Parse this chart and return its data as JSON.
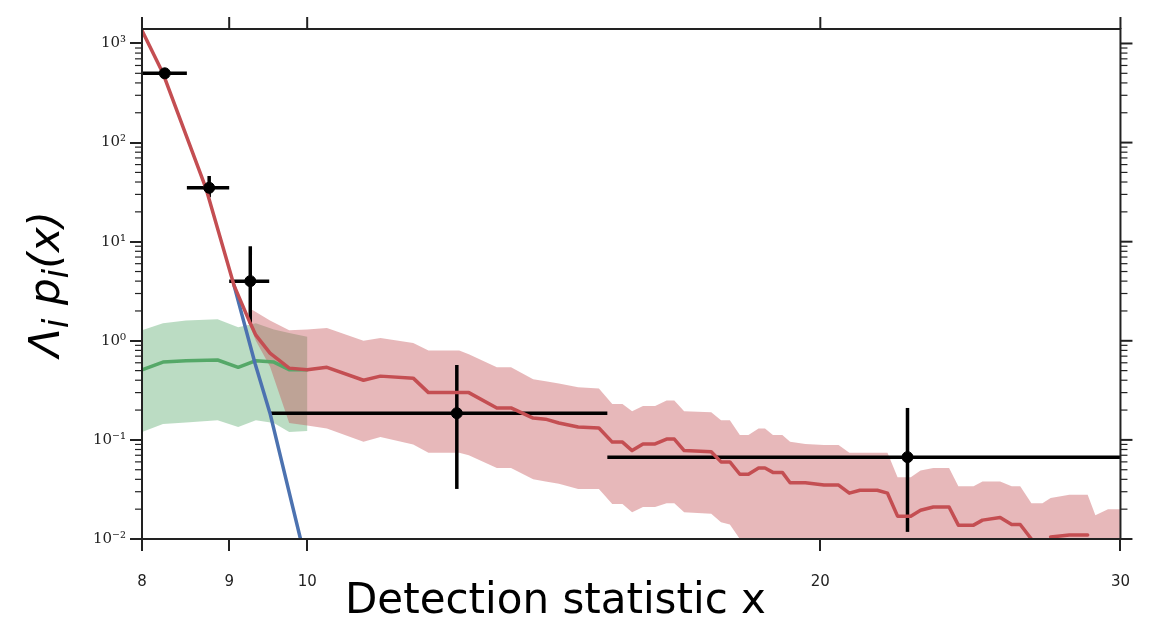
{
  "chart_data": {
    "type": "line",
    "xlabel": "Detection statistic x",
    "ylabel": "Λ$_{i}$ p$_{i}$(x)",
    "log": "xy",
    "grid": false,
    "legend": false,
    "xlim": [
      8,
      30
    ],
    "xticks": [
      8,
      9,
      10,
      20,
      30
    ],
    "ylim": [
      0.01,
      1400
    ],
    "yticks": [
      {
        "value": 0.01,
        "label": "10⁻²"
      },
      {
        "value": 0.1,
        "label": "10⁻¹"
      },
      {
        "value": 1,
        "label": "10⁰"
      },
      {
        "value": 10,
        "label": "10¹"
      },
      {
        "value": 100,
        "label": "10²"
      },
      {
        "value": 1000,
        "label": "10³"
      }
    ],
    "series": [
      {
        "color": "#55a868",
        "x": [
          8,
          8.23,
          8.49,
          8.86,
          9.11,
          9.33,
          9.56,
          9.76,
          10.0
        ],
        "values": [
          0.51,
          0.61,
          0.63,
          0.64,
          0.54,
          0.63,
          0.61,
          0.51,
          0.51
        ],
        "lower": [
          0.12,
          0.145,
          0.15,
          0.158,
          0.135,
          0.158,
          0.148,
          0.12,
          0.123
        ],
        "upper": [
          1.28,
          1.5,
          1.6,
          1.65,
          1.37,
          1.5,
          1.3,
          1.2,
          1.1
        ]
      },
      {
        "color": "#4c72b0",
        "x": [
          9.06,
          9.32,
          9.51,
          9.91
        ],
        "values": [
          3.6,
          0.59,
          0.186,
          0.01
        ]
      },
      {
        "color": "#c44e52",
        "x": [
          8,
          8.23,
          8.72,
          9.06,
          9.26,
          9.33,
          9.51,
          9.76,
          10.0,
          10.27,
          10.79,
          11.04,
          11.54,
          11.78,
          12.28,
          12.44,
          12.92,
          13.17,
          13.57,
          13.8,
          14.05,
          14.42,
          14.83,
          15.1,
          15.31,
          15.51,
          15.74,
          16.0,
          16.25,
          16.42,
          16.64,
          17.26,
          17.49,
          17.7,
          17.94,
          18.15,
          18.4,
          18.56,
          18.76,
          19.0,
          19.2,
          19.6,
          20.1,
          20.5,
          20.8,
          21.1,
          21.6,
          21.9,
          22.2,
          22.6,
          22.9,
          23.3,
          23.8,
          24.1,
          24.6,
          24.9,
          25.5,
          25.9,
          26.2,
          26.6,
          27.0,
          27.3,
          28.0,
          28.7,
          29.0,
          29.5,
          30.0
        ],
        "values": [
          1350,
          500,
          35,
          3.6,
          1.5,
          1.14,
          0.75,
          0.53,
          0.51,
          0.54,
          0.4,
          0.44,
          0.42,
          0.3,
          0.3,
          0.3,
          0.21,
          0.21,
          0.166,
          0.162,
          0.148,
          0.135,
          0.132,
          0.095,
          0.095,
          0.078,
          0.091,
          0.091,
          0.102,
          0.102,
          0.078,
          0.076,
          0.06,
          0.06,
          0.045,
          0.045,
          0.052,
          0.052,
          0.047,
          0.047,
          0.037,
          0.037,
          0.035,
          0.035,
          0.029,
          0.031,
          0.031,
          0.029,
          0.017,
          0.017,
          0.0195,
          0.021,
          0.021,
          0.0138,
          0.0138,
          0.0155,
          0.0165,
          0.014,
          0.014,
          0.01,
          null,
          0.0105,
          0.011,
          0.011,
          null,
          null,
          null
        ],
        "lower": [
          null,
          null,
          null,
          null,
          1.4,
          1.0,
          0.55,
          0.148,
          0.14,
          0.13,
          0.096,
          0.107,
          0.09,
          0.074,
          0.074,
          0.07,
          0.052,
          0.052,
          0.04,
          0.038,
          0.036,
          0.032,
          0.032,
          0.0225,
          0.0225,
          0.0186,
          0.021,
          0.021,
          0.023,
          0.023,
          0.0186,
          0.018,
          0.0148,
          0.014,
          0.01,
          0.01,
          0.01,
          0.01,
          0.01,
          0.01,
          0.01,
          0.01,
          0.01,
          0.01,
          0.01,
          0.01,
          0.01,
          0.01,
          0.01,
          0.01,
          0.01,
          0.01,
          0.01,
          0.01,
          0.01,
          0.01,
          0.01,
          0.01,
          0.01,
          0.01,
          0.01,
          0.01,
          0.01,
          0.01,
          0.01,
          0.01,
          0.01
        ],
        "upper": [
          null,
          null,
          null,
          null,
          2.1,
          1.95,
          1.6,
          1.28,
          1.3,
          1.35,
          1.0,
          1.07,
          0.95,
          0.8,
          0.8,
          0.73,
          0.54,
          0.54,
          0.41,
          0.39,
          0.37,
          0.34,
          0.33,
          0.23,
          0.23,
          0.195,
          0.22,
          0.22,
          0.25,
          0.25,
          0.195,
          0.19,
          0.158,
          0.158,
          0.112,
          0.112,
          0.13,
          0.13,
          0.112,
          0.112,
          0.096,
          0.091,
          0.089,
          0.089,
          0.074,
          0.074,
          0.074,
          0.074,
          0.042,
          0.042,
          0.049,
          0.052,
          0.052,
          0.034,
          0.034,
          0.038,
          0.038,
          0.034,
          0.034,
          0.023,
          0.023,
          0.026,
          0.028,
          0.028,
          0.0174,
          0.02,
          0.02
        ]
      },
      {
        "type": "scatter",
        "color": "#000000",
        "marker": "circle",
        "x": [
          8.25,
          8.76,
          9.26,
          12.24,
          22.5
        ],
        "values": [
          500,
          35,
          4.0,
          0.186,
          0.067
        ],
        "errors": [
          null,
          [
            28,
            46
          ],
          [
            1.5,
            9.0
          ],
          [
            0.032,
            0.57
          ],
          [
            0.0118,
            0.21
          ]
        ],
        "xerrors": [
          [
            8,
            8.5
          ],
          [
            8.5,
            9.0
          ],
          [
            9.0,
            9.5
          ],
          [
            9.5,
            15.0
          ],
          [
            15.0,
            30
          ]
        ]
      }
    ]
  }
}
